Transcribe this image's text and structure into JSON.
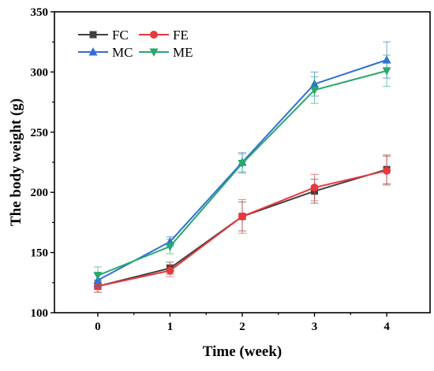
{
  "chart_data": {
    "type": "line",
    "title": "",
    "xlabel": "Time (week)",
    "ylabel": "The body weight (g)",
    "x": [
      0,
      1,
      2,
      3,
      4
    ],
    "x_tick_labels": [
      "0",
      "1",
      "2",
      "3",
      "4"
    ],
    "xlim": [
      -0.6,
      4.6
    ],
    "ylim": [
      100,
      350
    ],
    "y_tick_values": [
      100,
      150,
      200,
      250,
      300,
      350
    ],
    "y_tick_labels": [
      "100",
      "150",
      "200",
      "250",
      "300",
      "350"
    ],
    "grid": false,
    "legend_position": "top-left",
    "series": [
      {
        "name": "FC",
        "color": "#404040",
        "marker": "square",
        "values": [
          122,
          137,
          180,
          201,
          219
        ],
        "errors": [
          5,
          5,
          12,
          10,
          12
        ]
      },
      {
        "name": "FE",
        "color": "#e8383b",
        "marker": "circle",
        "values": [
          122,
          135,
          180,
          204,
          218
        ],
        "errors": [
          5,
          5,
          14,
          11,
          12
        ]
      },
      {
        "name": "MC",
        "color": "#2f6fd6",
        "marker": "triangle-up",
        "values": [
          127,
          159,
          225,
          290,
          310
        ],
        "errors": [
          5,
          4,
          8,
          10,
          15
        ]
      },
      {
        "name": "ME",
        "color": "#27a96b",
        "marker": "triangle-down",
        "values": [
          131,
          155,
          224,
          285,
          301
        ],
        "errors": [
          7,
          6,
          8,
          11,
          13
        ]
      }
    ]
  }
}
